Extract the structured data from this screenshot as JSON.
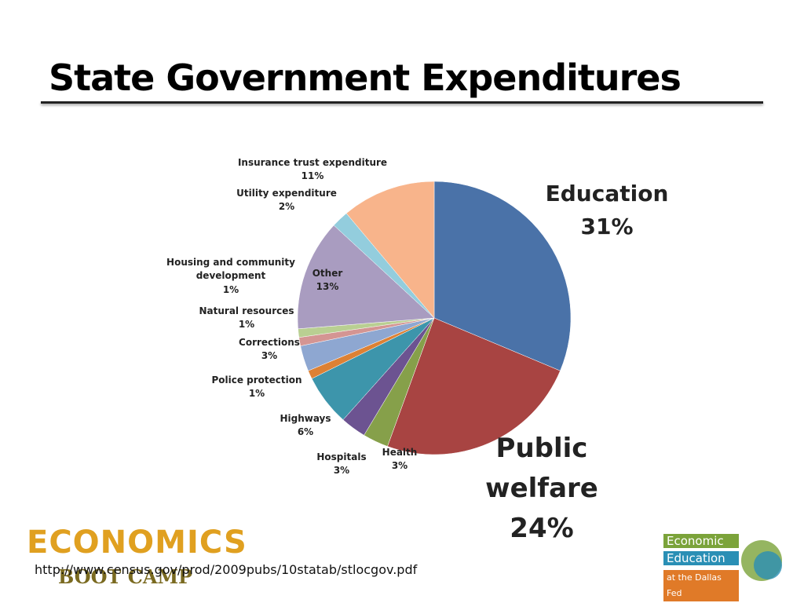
{
  "chart_data": {
    "type": "pie",
    "title": "State Government Expenditures",
    "categories": [
      "Education",
      "Public welfare",
      "Health",
      "Hospitals",
      "Highways",
      "Police protection",
      "Corrections",
      "Natural resources",
      "Housing and community development",
      "Other",
      "Utility expenditure",
      "Insurance trust expenditure"
    ],
    "values": [
      31,
      24,
      3,
      3,
      6,
      1,
      3,
      1,
      1,
      13,
      2,
      11
    ],
    "value_labels": [
      "31%",
      "24%",
      "3%",
      "3%",
      "6%",
      "1%",
      "3%",
      "1%",
      "1%",
      "13%",
      "2%",
      "11%"
    ],
    "colors": [
      "#4a72a8",
      "#a84442",
      "#86a04a",
      "#6c5391",
      "#3d95ab",
      "#dd8134",
      "#8ea7d1",
      "#d49593",
      "#b9cf92",
      "#a99cc0",
      "#93cddd",
      "#f8b48b"
    ]
  },
  "source": "http://www.census.gov/prod/2009pubs/10statab/stlocgov.pdf",
  "logos": {
    "left": {
      "word": "ECONOMICS",
      "sub": "BOOT CAMP"
    },
    "right": {
      "line1": "Economic",
      "line2": "Education",
      "line3": "at the Dallas Fed"
    }
  }
}
